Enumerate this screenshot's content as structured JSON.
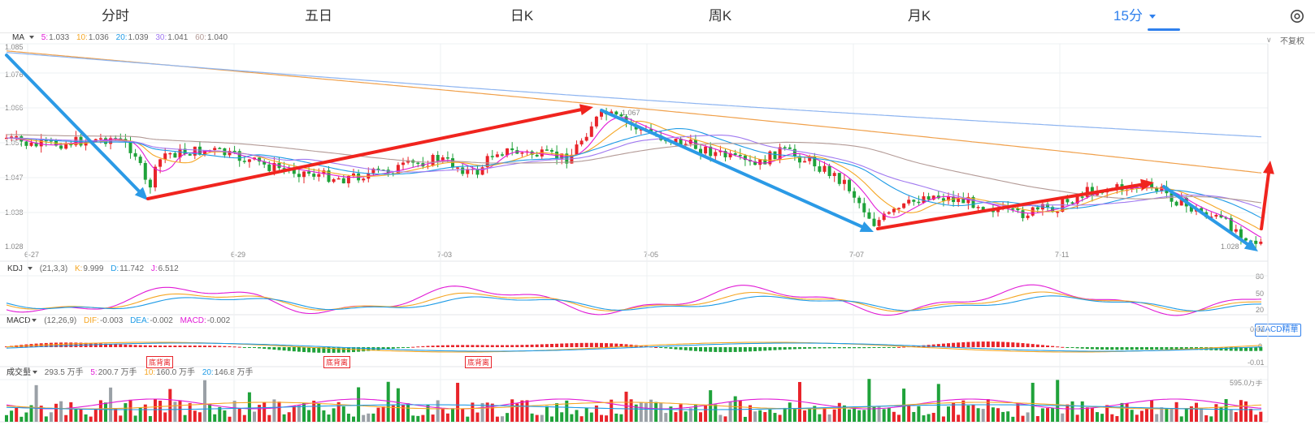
{
  "tabs": [
    {
      "label": "分时",
      "active": false
    },
    {
      "label": "五日",
      "active": false
    },
    {
      "label": "日K",
      "active": false
    },
    {
      "label": "周K",
      "active": false
    },
    {
      "label": "月K",
      "active": false
    },
    {
      "label": "15分",
      "active": true
    }
  ],
  "settings_icon": "gear-icon",
  "ma_legend": {
    "selector": "MA",
    "items": [
      {
        "key": "5:",
        "value": "1.033",
        "color": "#e11ad6"
      },
      {
        "key": "10:",
        "value": "1.036",
        "color": "#f5a623"
      },
      {
        "key": "20:",
        "value": "1.039",
        "color": "#1e9be6"
      },
      {
        "key": "30:",
        "value": "1.041",
        "color": "#a078f0"
      },
      {
        "key": "60:",
        "value": "1.040",
        "color": "#b39a96"
      }
    ]
  },
  "adjust_label": "不复权",
  "price_axis": [
    "1.085",
    "1.076",
    "1.066",
    "1.057",
    "1.047",
    "1.038",
    "1.028"
  ],
  "price_annotations": {
    "high": "1.067",
    "low": "1.028"
  },
  "date_labels": [
    "6-27",
    "6-29",
    "7-03",
    "7-05",
    "7-07",
    "7-11"
  ],
  "kdj_legend": {
    "selector": "KDJ",
    "params": "(21,3,3)",
    "items": [
      {
        "key": "K:",
        "value": "9.999",
        "color": "#f5a623"
      },
      {
        "key": "D:",
        "value": "11.742",
        "color": "#1e9be6"
      },
      {
        "key": "J:",
        "value": "6.512",
        "color": "#e11ad6"
      }
    ]
  },
  "kdj_axis": [
    "80",
    "50",
    "20"
  ],
  "macd_legend": {
    "selector": "MACD",
    "params": "(12,26,9)",
    "items": [
      {
        "key": "DIF:",
        "value": "-0.003",
        "color": "#f5a623"
      },
      {
        "key": "DEA:",
        "value": "-0.002",
        "color": "#1e9be6"
      },
      {
        "key": "MACD:",
        "value": "-0.002",
        "color": "#e11ad6"
      }
    ]
  },
  "macd_axis": [
    "0.01",
    "0",
    "-0.01"
  ],
  "macd_button": "MACD精華",
  "divergence_labels": [
    "底背离",
    "底背离",
    "底背离"
  ],
  "volume_legend": {
    "selector": "成交量",
    "total": "293.5 万手",
    "items": [
      {
        "key": "5:",
        "value": "200.7 万手",
        "color": "#e11ad6"
      },
      {
        "key": "10:",
        "value": "160.0 万手",
        "color": "#f5a623"
      },
      {
        "key": "20:",
        "value": "146.8 万手",
        "color": "#1e9be6"
      }
    ]
  },
  "volume_max": "595.0万手",
  "colors": {
    "up": "#e8242a",
    "down": "#1fa23a",
    "accent": "#2f80ed",
    "arrow_blue": "#2b9ae6",
    "arrow_red": "#f0241e"
  }
}
